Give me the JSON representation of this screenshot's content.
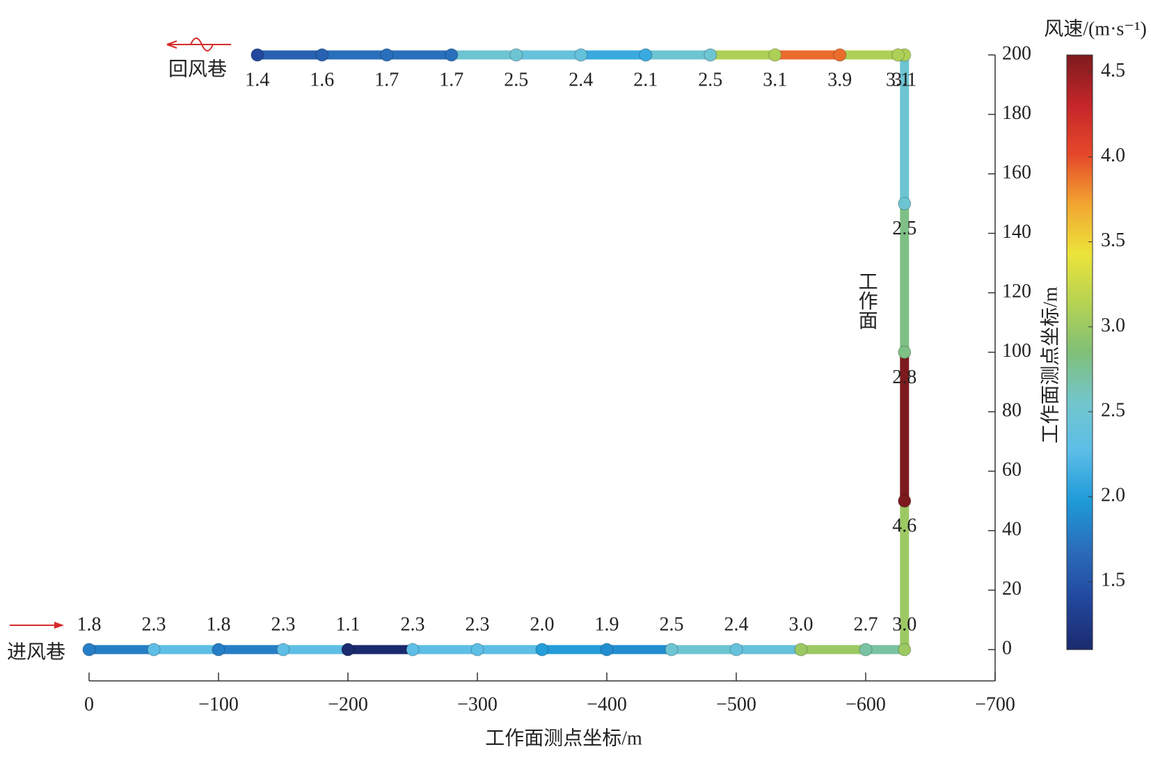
{
  "chart_data": {
    "type": "path",
    "xlabel": "工作面测点坐标/m",
    "ylabel": "工作面测点坐标/m",
    "colorbar_label": "风速/(m·s⁻¹)",
    "annotations": [
      "回风巷",
      "进风巷",
      "工作面"
    ],
    "x": [
      0,
      -50,
      -100,
      -150,
      -200,
      -250,
      -300,
      -350,
      -400,
      -450,
      -500,
      -550,
      -600,
      -630,
      -630,
      -630,
      -630,
      -630,
      -625,
      -580,
      -530,
      -480,
      -430,
      -380,
      -330,
      -280,
      -230,
      -180,
      -130
    ],
    "y": [
      0,
      0,
      0,
      0,
      0,
      0,
      0,
      0,
      0,
      0,
      0,
      0,
      0,
      0,
      50,
      100,
      150,
      200,
      200,
      200,
      200,
      200,
      200,
      200,
      200,
      200,
      200,
      200,
      200
    ],
    "values": [
      1.8,
      2.3,
      1.8,
      2.3,
      1.1,
      2.3,
      2.3,
      2,
      1.9,
      2.5,
      2.4,
      3,
      2.7,
      3,
      4.6,
      2.8,
      2.5,
      3.1,
      3.1,
      3.9,
      3.1,
      2.5,
      2.1,
      2.4,
      2.5,
      1.7,
      1.7,
      1.6,
      1.4
    ],
    "value_labels": [
      "1.8",
      "2.3",
      "1.8",
      "2.3",
      "1.1",
      "2.3",
      "2.3",
      "2.0",
      "1.9",
      "2.5",
      "2.4",
      "3.0",
      "2.7",
      "3.0",
      "4.6",
      "2.8",
      "2.5",
      "3.1",
      "3.1",
      "3.9",
      "3.1",
      "2.5",
      "2.1",
      "2.4",
      "2.5",
      "1.7",
      "1.7",
      "1.6",
      "1.4"
    ],
    "xlim": [
      0,
      -700
    ],
    "xticks": [
      0,
      {
        "value": -100,
        "label": "−100"
      },
      {
        "value": -200,
        "label": "−200"
      },
      {
        "value": -300,
        "label": "−300"
      },
      {
        "value": -400,
        "label": "−400"
      },
      {
        "value": -500,
        "label": "−500"
      },
      {
        "value": -600,
        "label": "−600"
      },
      {
        "value": -700,
        "label": "−700"
      }
    ],
    "ylim": [
      0,
      200
    ],
    "yticks": [
      0,
      20,
      40,
      60,
      80,
      100,
      120,
      140,
      160,
      180,
      200
    ],
    "clim": [
      1.1,
      4.6
    ],
    "cticks": [
      1.5,
      {
        "value": 2,
        "label": "2.0"
      },
      2.5,
      {
        "value": 3,
        "label": "3.0"
      },
      3.5,
      {
        "value": 4,
        "label": "4.0"
      },
      4.5
    ],
    "colormap": [
      "#1b2a6e",
      "#22479c",
      "#2a6cba",
      "#1f9ad8",
      "#5bbde8",
      "#72c6cc",
      "#80bf78",
      "#b6d352",
      "#ece33a",
      "#f2a431",
      "#e5472a",
      "#c4262a",
      "#7d1a1e"
    ]
  }
}
